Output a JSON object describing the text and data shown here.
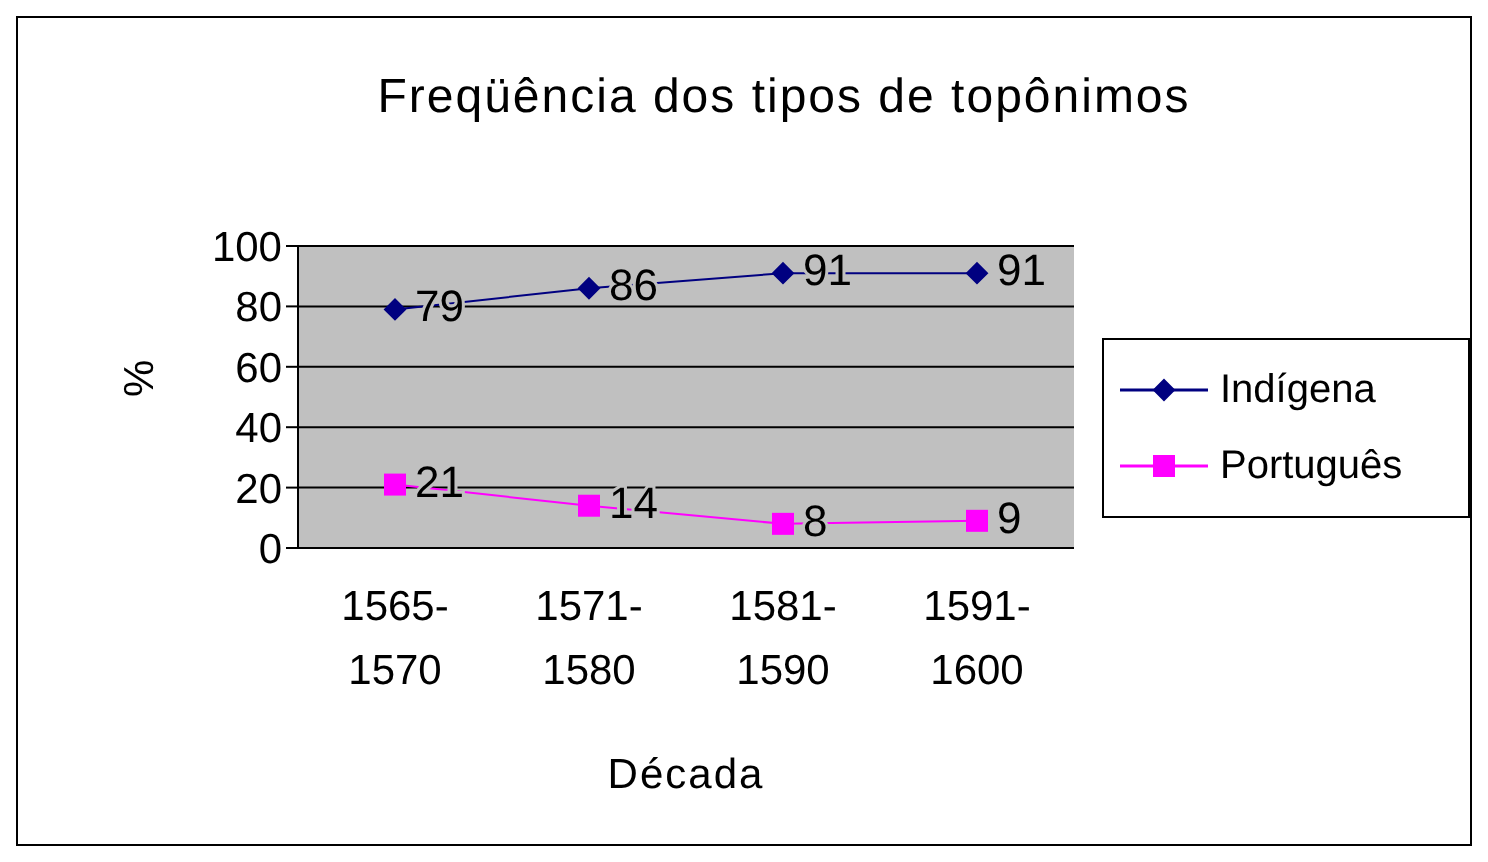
{
  "chart_data": {
    "type": "line",
    "title": "Freqüência dos tipos de topônimos",
    "xlabel": "Década",
    "ylabel": "%",
    "categories": [
      "1565-1570",
      "1571-1580",
      "1581-1590",
      "1591-1600"
    ],
    "series": [
      {
        "name": "Indígena",
        "color": "#000080",
        "marker": "diamond",
        "values": [
          79,
          86,
          91,
          91
        ]
      },
      {
        "name": "Português",
        "color": "#ff00ff",
        "marker": "square",
        "values": [
          21,
          14,
          8,
          9
        ]
      }
    ],
    "ylim": [
      0,
      100
    ],
    "yticks": [
      0,
      20,
      40,
      60,
      80,
      100
    ],
    "grid": "y",
    "legend": "right",
    "data_labels": true
  }
}
